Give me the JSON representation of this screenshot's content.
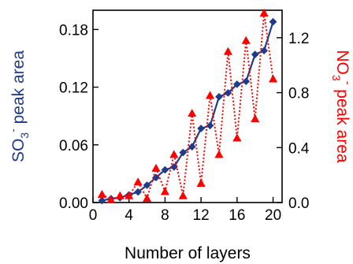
{
  "chart_data": {
    "type": "line",
    "xlabel": "Number of layers",
    "xlim": [
      0,
      21
    ],
    "xticks": [
      0,
      4,
      8,
      12,
      16,
      20
    ],
    "left_axis": {
      "label_parts": {
        "base": "SO",
        "sub": "3",
        "sup": "-",
        "rest": " peak area"
      },
      "color": "#1f3b8c",
      "ylim": [
        0,
        0.2
      ],
      "ticks": [
        0.0,
        0.06,
        0.12,
        0.18
      ],
      "tick_labels": [
        "0.00",
        "0.06",
        "0.12",
        "0.18"
      ]
    },
    "right_axis": {
      "label_parts": {
        "base": "NO",
        "sub": "3",
        "sup": "-",
        "rest": " peak area"
      },
      "color": "#ff0000",
      "ylim": [
        0,
        1.4
      ],
      "ticks": [
        0.0,
        0.4,
        0.8,
        1.2
      ],
      "tick_labels": [
        "0.0",
        "0.4",
        "0.8",
        "1.2"
      ]
    },
    "series": [
      {
        "axis": "left",
        "marker": "diamond",
        "line": "solid",
        "color": "#1f3b8c",
        "x": [
          1,
          2,
          3,
          4,
          5,
          6,
          7,
          8,
          9,
          10,
          11,
          12,
          13,
          14,
          15,
          16,
          17,
          18,
          19,
          20
        ],
        "y": [
          0.002,
          0.004,
          0.005,
          0.008,
          0.011,
          0.018,
          0.026,
          0.034,
          0.037,
          0.052,
          0.058,
          0.077,
          0.08,
          0.11,
          0.114,
          0.123,
          0.126,
          0.154,
          0.158,
          0.188
        ]
      },
      {
        "axis": "right",
        "marker": "triangle",
        "line": "dotted",
        "color": "#ff0000",
        "x": [
          1,
          2,
          3,
          4,
          5,
          6,
          7,
          8,
          9,
          10,
          11,
          12,
          13,
          14,
          15,
          16,
          17,
          18,
          19,
          20
        ],
        "y": [
          0.06,
          0.02,
          0.05,
          0.05,
          0.15,
          0.03,
          0.25,
          0.08,
          0.35,
          0.05,
          0.65,
          0.14,
          0.78,
          0.35,
          1.1,
          0.47,
          1.18,
          0.61,
          1.38,
          0.9
        ]
      }
    ]
  }
}
